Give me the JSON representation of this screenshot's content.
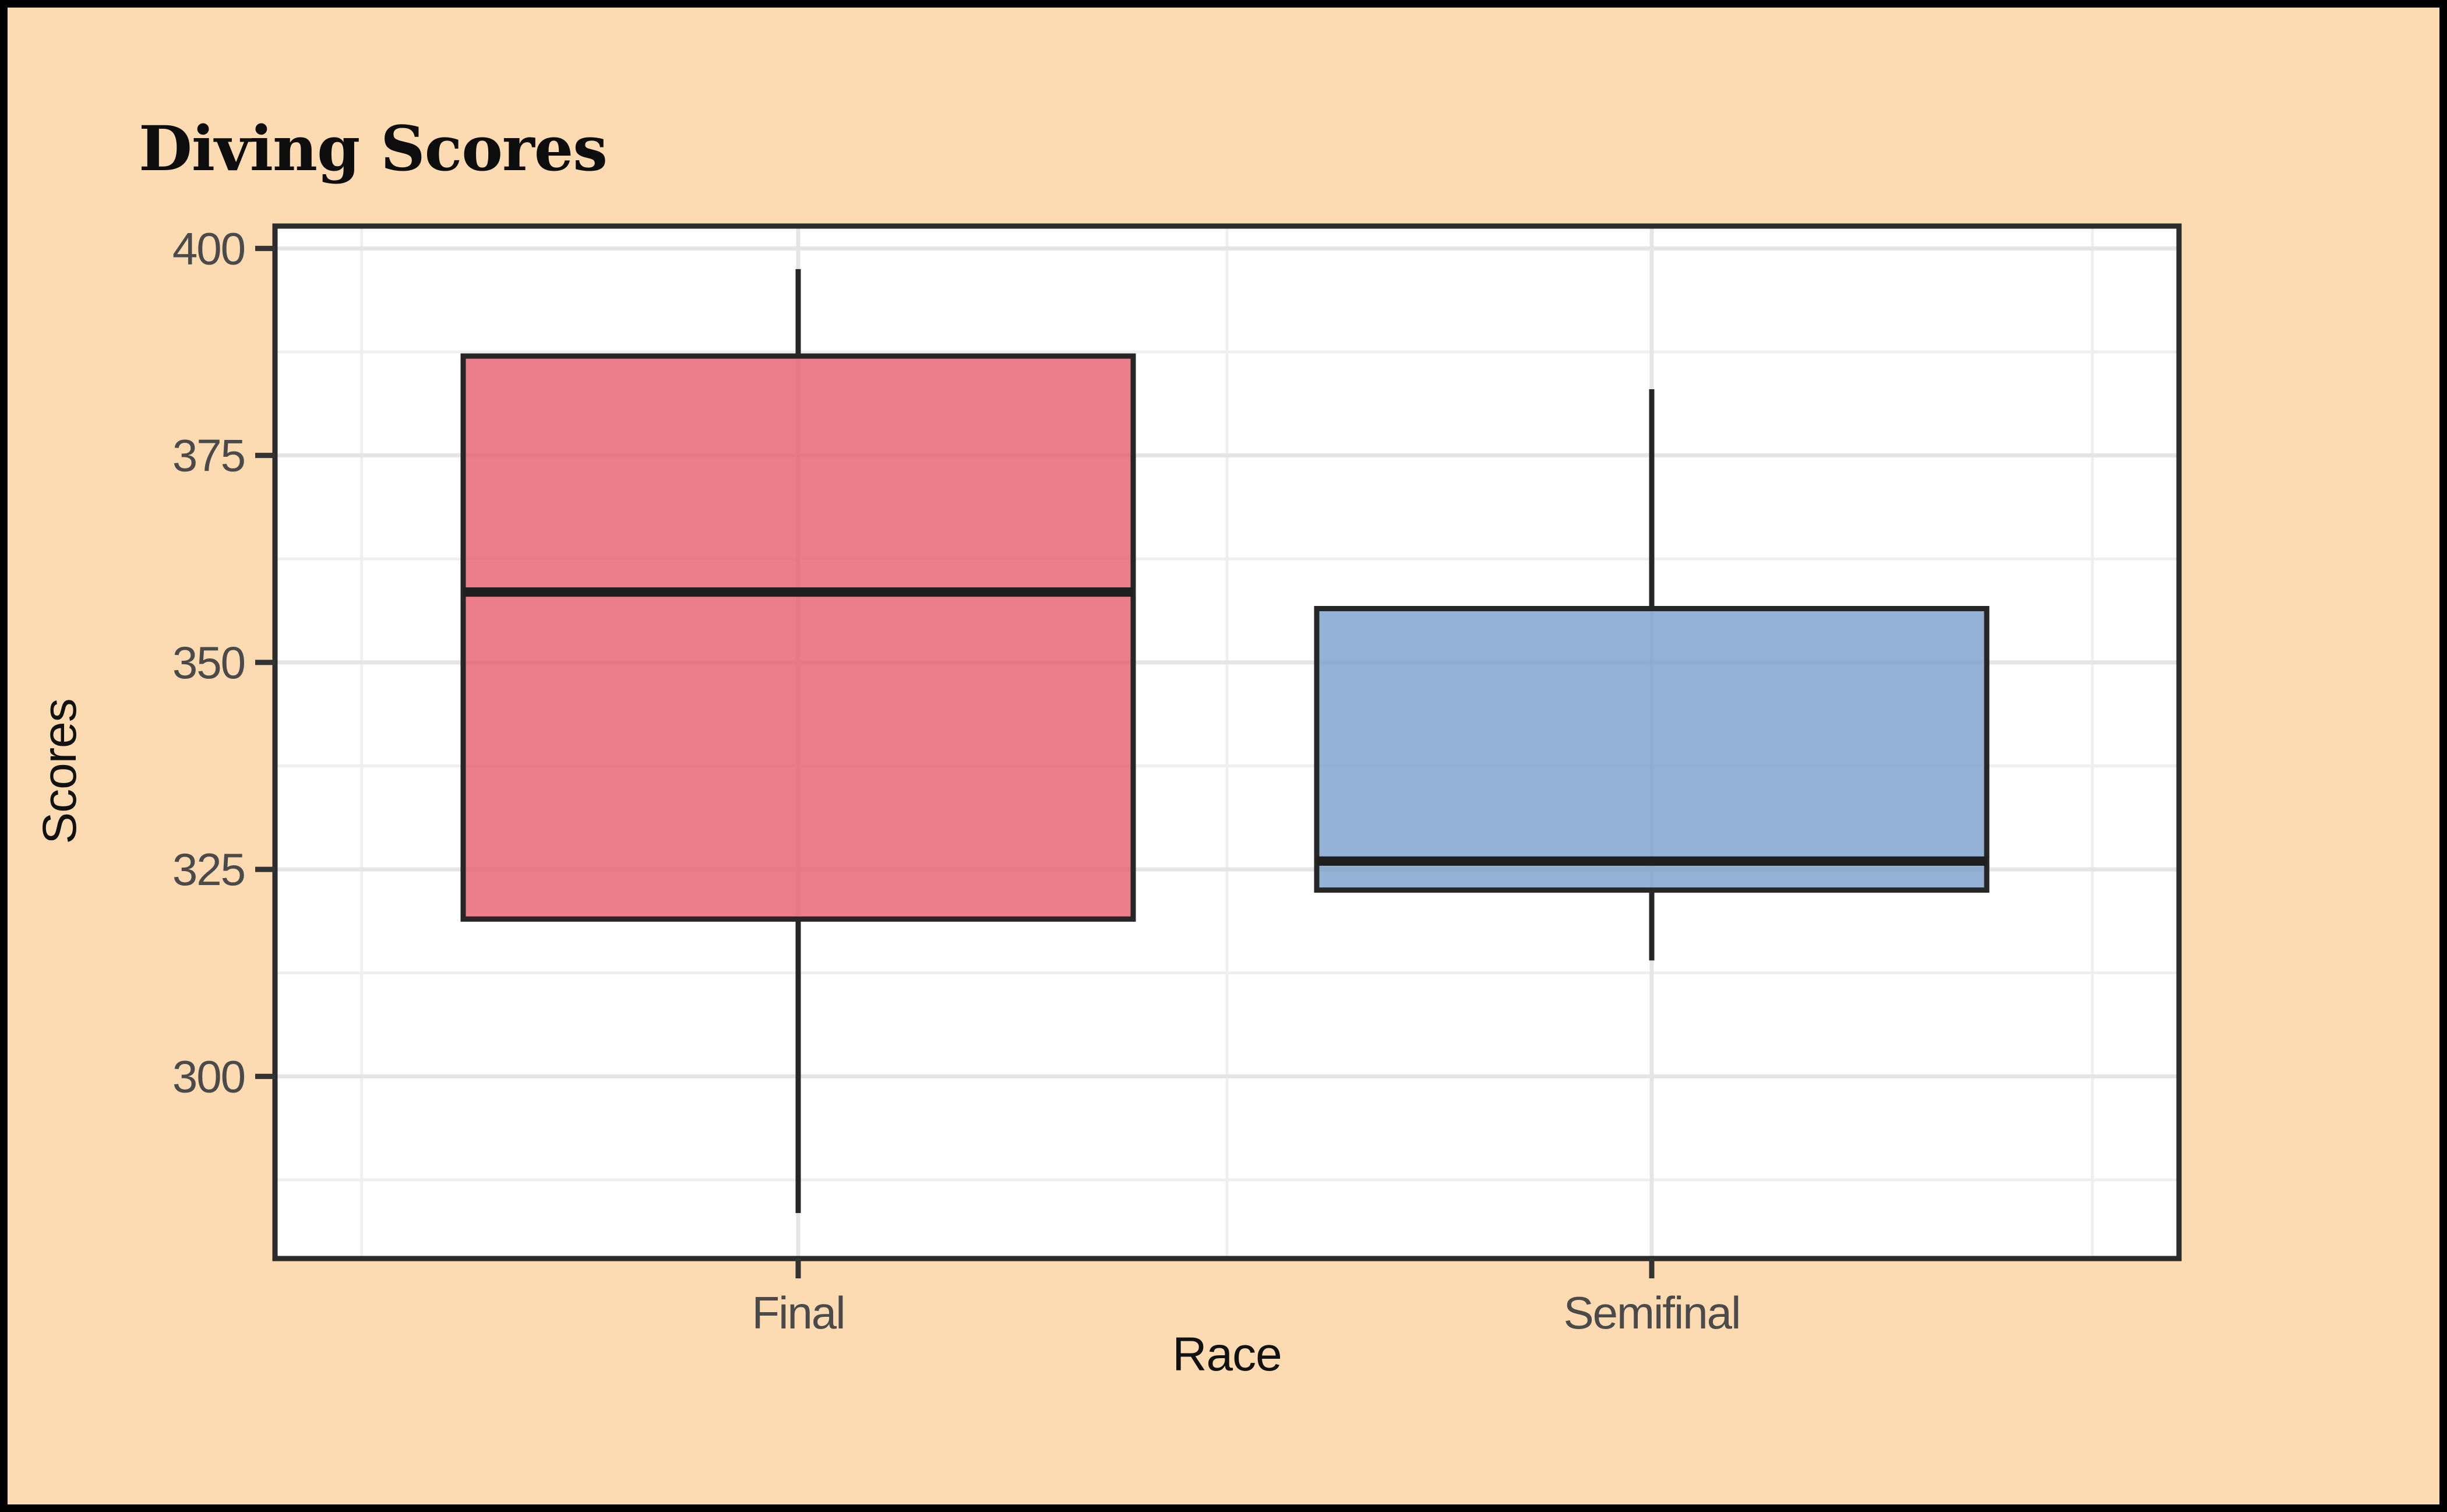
{
  "page": {
    "background_color": "#FCDBB3",
    "frame_color": "#000000",
    "panel_background": "#FFFFFF"
  },
  "title": "Diving Scores",
  "chart_data": {
    "type": "boxplot",
    "title": "Diving Scores",
    "xlabel": "Race",
    "ylabel": "Scores",
    "categories": [
      "Final",
      "Semifinal"
    ],
    "y_ticks": [
      400,
      375,
      350,
      325,
      300
    ],
    "y_minor_gridlines": [
      387.5,
      362.5,
      337.5,
      312.5,
      287.5
    ],
    "ylim": [
      278,
      402.7
    ],
    "grid": "major and minor, light gray, horizontal and vertical",
    "legend": false,
    "series": [
      {
        "name": "Final",
        "whisker_low": 283.5,
        "q1": 319,
        "median": 358.5,
        "q3": 387,
        "whisker_high": 397.5,
        "fill_base": "#E75D6D",
        "fill_rendered": "#EC7D8A"
      },
      {
        "name": "Semifinal",
        "whisker_low": 314,
        "q1": 322.5,
        "median": 326,
        "q3": 356.5,
        "whisker_high": 383,
        "fill_base": "#789FCC",
        "fill_rendered": "#93B2D6"
      }
    ],
    "style": {
      "box_stroke": "#262626",
      "median_stroke": "#1f1f1f",
      "gridline_major": "#E5E5E5",
      "gridline_minor": "#EFEFEF",
      "tick_color": "#333333",
      "tick_label_color": "#4A4A4A",
      "axis_title_color": "#111111"
    }
  }
}
